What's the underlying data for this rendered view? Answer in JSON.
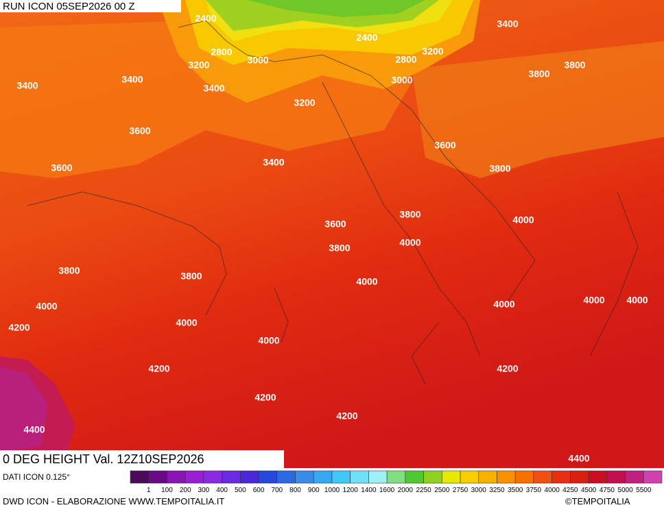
{
  "header": {
    "run": "RUN ICON 05SEP2026 00 Z"
  },
  "map": {
    "contour_labels": [
      "2400",
      "2400",
      "3400",
      "2800",
      "3000",
      "3200",
      "2800",
      "3200",
      "3400",
      "3400",
      "3400",
      "3000",
      "3800",
      "3800",
      "3200",
      "3600",
      "3600",
      "3400",
      "3600",
      "3800",
      "3800",
      "4000",
      "3600",
      "4000",
      "3800",
      "3800",
      "3800",
      "4000",
      "4000",
      "4000",
      "4000",
      "4000",
      "4000",
      "4200",
      "4000",
      "4200",
      "4200",
      "4200",
      "4200",
      "4400",
      "4400"
    ]
  },
  "footer": {
    "title": "0 DEG HEIGHT Val. 12Z10SEP2026",
    "source": "DATI ICON 0.125°",
    "credit": "DWD ICON - ELABORAZIONE WWW.TEMPOITALIA.IT",
    "copyright": "©TEMPOITALIA"
  },
  "legend": {
    "labels": [
      "1",
      "100",
      "200",
      "300",
      "400",
      "500",
      "600",
      "700",
      "800",
      "900",
      "1000",
      "1200",
      "1400",
      "1600",
      "2000",
      "2250",
      "2500",
      "2750",
      "3000",
      "3250",
      "3500",
      "3750",
      "4000",
      "4250",
      "4500",
      "4750",
      "5000",
      "5500"
    ]
  }
}
